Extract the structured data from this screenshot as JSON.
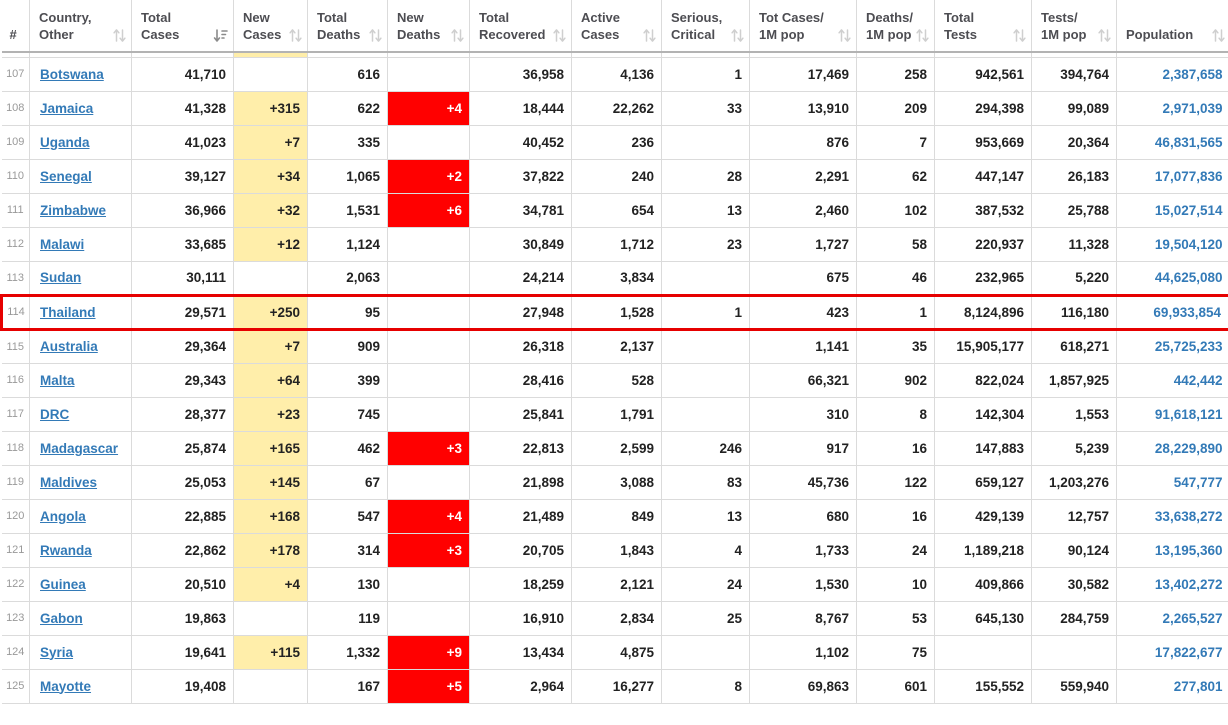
{
  "table": {
    "sort": {
      "active_column": "total_cases",
      "direction": "desc"
    },
    "partial_row_above": {
      "visible": true,
      "yellow_column": "new_cases"
    },
    "columns": [
      {
        "key": "num",
        "lines": [
          "#"
        ],
        "sortable": false
      },
      {
        "key": "country",
        "lines": [
          "Country,",
          "Other"
        ],
        "sortable": true
      },
      {
        "key": "total_cases",
        "lines": [
          "Total",
          "Cases"
        ],
        "sortable": true
      },
      {
        "key": "new_cases",
        "lines": [
          "New",
          "Cases"
        ],
        "sortable": true
      },
      {
        "key": "total_deaths",
        "lines": [
          "Total",
          "Deaths"
        ],
        "sortable": true
      },
      {
        "key": "new_deaths",
        "lines": [
          "New",
          "Deaths"
        ],
        "sortable": true
      },
      {
        "key": "total_recovered",
        "lines": [
          "Total",
          "Recovered"
        ],
        "sortable": true
      },
      {
        "key": "active_cases",
        "lines": [
          "Active",
          "Cases"
        ],
        "sortable": true
      },
      {
        "key": "serious_critical",
        "lines": [
          "Serious,",
          "Critical"
        ],
        "sortable": true
      },
      {
        "key": "cases_per_1m",
        "lines": [
          "Tot Cases/",
          "1M pop"
        ],
        "sortable": true
      },
      {
        "key": "deaths_per_1m",
        "lines": [
          "Deaths/",
          "1M pop"
        ],
        "sortable": true
      },
      {
        "key": "total_tests",
        "lines": [
          "Total",
          "Tests"
        ],
        "sortable": true
      },
      {
        "key": "tests_per_1m",
        "lines": [
          "Tests/",
          "1M pop"
        ],
        "sortable": true
      },
      {
        "key": "population",
        "lines": [
          "Population"
        ],
        "sortable": true
      }
    ],
    "rows": [
      {
        "num": "107",
        "country": "Botswana",
        "total_cases": "41,710",
        "new_cases": "",
        "total_deaths": "616",
        "new_deaths": "",
        "total_recovered": "36,958",
        "active_cases": "4,136",
        "serious_critical": "1",
        "cases_per_1m": "17,469",
        "deaths_per_1m": "258",
        "total_tests": "942,561",
        "tests_per_1m": "394,764",
        "population": "2,387,658",
        "highlighted": false
      },
      {
        "num": "108",
        "country": "Jamaica",
        "total_cases": "41,328",
        "new_cases": "+315",
        "total_deaths": "622",
        "new_deaths": "+4",
        "total_recovered": "18,444",
        "active_cases": "22,262",
        "serious_critical": "33",
        "cases_per_1m": "13,910",
        "deaths_per_1m": "209",
        "total_tests": "294,398",
        "tests_per_1m": "99,089",
        "population": "2,971,039",
        "highlighted": false
      },
      {
        "num": "109",
        "country": "Uganda",
        "total_cases": "41,023",
        "new_cases": "+7",
        "total_deaths": "335",
        "new_deaths": "",
        "total_recovered": "40,452",
        "active_cases": "236",
        "serious_critical": "",
        "cases_per_1m": "876",
        "deaths_per_1m": "7",
        "total_tests": "953,669",
        "tests_per_1m": "20,364",
        "population": "46,831,565",
        "highlighted": false
      },
      {
        "num": "110",
        "country": "Senegal",
        "total_cases": "39,127",
        "new_cases": "+34",
        "total_deaths": "1,065",
        "new_deaths": "+2",
        "total_recovered": "37,822",
        "active_cases": "240",
        "serious_critical": "28",
        "cases_per_1m": "2,291",
        "deaths_per_1m": "62",
        "total_tests": "447,147",
        "tests_per_1m": "26,183",
        "population": "17,077,836",
        "highlighted": false
      },
      {
        "num": "111",
        "country": "Zimbabwe",
        "total_cases": "36,966",
        "new_cases": "+32",
        "total_deaths": "1,531",
        "new_deaths": "+6",
        "total_recovered": "34,781",
        "active_cases": "654",
        "serious_critical": "13",
        "cases_per_1m": "2,460",
        "deaths_per_1m": "102",
        "total_tests": "387,532",
        "tests_per_1m": "25,788",
        "population": "15,027,514",
        "highlighted": false
      },
      {
        "num": "112",
        "country": "Malawi",
        "total_cases": "33,685",
        "new_cases": "+12",
        "total_deaths": "1,124",
        "new_deaths": "",
        "total_recovered": "30,849",
        "active_cases": "1,712",
        "serious_critical": "23",
        "cases_per_1m": "1,727",
        "deaths_per_1m": "58",
        "total_tests": "220,937",
        "tests_per_1m": "11,328",
        "population": "19,504,120",
        "highlighted": false
      },
      {
        "num": "113",
        "country": "Sudan",
        "total_cases": "30,111",
        "new_cases": "",
        "total_deaths": "2,063",
        "new_deaths": "",
        "total_recovered": "24,214",
        "active_cases": "3,834",
        "serious_critical": "",
        "cases_per_1m": "675",
        "deaths_per_1m": "46",
        "total_tests": "232,965",
        "tests_per_1m": "5,220",
        "population": "44,625,080",
        "highlighted": false
      },
      {
        "num": "114",
        "country": "Thailand",
        "total_cases": "29,571",
        "new_cases": "+250",
        "total_deaths": "95",
        "new_deaths": "",
        "total_recovered": "27,948",
        "active_cases": "1,528",
        "serious_critical": "1",
        "cases_per_1m": "423",
        "deaths_per_1m": "1",
        "total_tests": "8,124,896",
        "tests_per_1m": "116,180",
        "population": "69,933,854",
        "highlighted": true
      },
      {
        "num": "115",
        "country": "Australia",
        "total_cases": "29,364",
        "new_cases": "+7",
        "total_deaths": "909",
        "new_deaths": "",
        "total_recovered": "26,318",
        "active_cases": "2,137",
        "serious_critical": "",
        "cases_per_1m": "1,141",
        "deaths_per_1m": "35",
        "total_tests": "15,905,177",
        "tests_per_1m": "618,271",
        "population": "25,725,233",
        "highlighted": false
      },
      {
        "num": "116",
        "country": "Malta",
        "total_cases": "29,343",
        "new_cases": "+64",
        "total_deaths": "399",
        "new_deaths": "",
        "total_recovered": "28,416",
        "active_cases": "528",
        "serious_critical": "",
        "cases_per_1m": "66,321",
        "deaths_per_1m": "902",
        "total_tests": "822,024",
        "tests_per_1m": "1,857,925",
        "population": "442,442",
        "highlighted": false
      },
      {
        "num": "117",
        "country": "DRC",
        "total_cases": "28,377",
        "new_cases": "+23",
        "total_deaths": "745",
        "new_deaths": "",
        "total_recovered": "25,841",
        "active_cases": "1,791",
        "serious_critical": "",
        "cases_per_1m": "310",
        "deaths_per_1m": "8",
        "total_tests": "142,304",
        "tests_per_1m": "1,553",
        "population": "91,618,121",
        "highlighted": false
      },
      {
        "num": "118",
        "country": "Madagascar",
        "total_cases": "25,874",
        "new_cases": "+165",
        "total_deaths": "462",
        "new_deaths": "+3",
        "total_recovered": "22,813",
        "active_cases": "2,599",
        "serious_critical": "246",
        "cases_per_1m": "917",
        "deaths_per_1m": "16",
        "total_tests": "147,883",
        "tests_per_1m": "5,239",
        "population": "28,229,890",
        "highlighted": false
      },
      {
        "num": "119",
        "country": "Maldives",
        "total_cases": "25,053",
        "new_cases": "+145",
        "total_deaths": "67",
        "new_deaths": "",
        "total_recovered": "21,898",
        "active_cases": "3,088",
        "serious_critical": "83",
        "cases_per_1m": "45,736",
        "deaths_per_1m": "122",
        "total_tests": "659,127",
        "tests_per_1m": "1,203,276",
        "population": "547,777",
        "highlighted": false
      },
      {
        "num": "120",
        "country": "Angola",
        "total_cases": "22,885",
        "new_cases": "+168",
        "total_deaths": "547",
        "new_deaths": "+4",
        "total_recovered": "21,489",
        "active_cases": "849",
        "serious_critical": "13",
        "cases_per_1m": "680",
        "deaths_per_1m": "16",
        "total_tests": "429,139",
        "tests_per_1m": "12,757",
        "population": "33,638,272",
        "highlighted": false
      },
      {
        "num": "121",
        "country": "Rwanda",
        "total_cases": "22,862",
        "new_cases": "+178",
        "total_deaths": "314",
        "new_deaths": "+3",
        "total_recovered": "20,705",
        "active_cases": "1,843",
        "serious_critical": "4",
        "cases_per_1m": "1,733",
        "deaths_per_1m": "24",
        "total_tests": "1,189,218",
        "tests_per_1m": "90,124",
        "population": "13,195,360",
        "highlighted": false
      },
      {
        "num": "122",
        "country": "Guinea",
        "total_cases": "20,510",
        "new_cases": "+4",
        "total_deaths": "130",
        "new_deaths": "",
        "total_recovered": "18,259",
        "active_cases": "2,121",
        "serious_critical": "24",
        "cases_per_1m": "1,530",
        "deaths_per_1m": "10",
        "total_tests": "409,866",
        "tests_per_1m": "30,582",
        "population": "13,402,272",
        "highlighted": false
      },
      {
        "num": "123",
        "country": "Gabon",
        "total_cases": "19,863",
        "new_cases": "",
        "total_deaths": "119",
        "new_deaths": "",
        "total_recovered": "16,910",
        "active_cases": "2,834",
        "serious_critical": "25",
        "cases_per_1m": "8,767",
        "deaths_per_1m": "53",
        "total_tests": "645,130",
        "tests_per_1m": "284,759",
        "population": "2,265,527",
        "highlighted": false
      },
      {
        "num": "124",
        "country": "Syria",
        "total_cases": "19,641",
        "new_cases": "+115",
        "total_deaths": "1,332",
        "new_deaths": "+9",
        "total_recovered": "13,434",
        "active_cases": "4,875",
        "serious_critical": "",
        "cases_per_1m": "1,102",
        "deaths_per_1m": "75",
        "total_tests": "",
        "tests_per_1m": "",
        "population": "17,822,677",
        "highlighted": false
      },
      {
        "num": "125",
        "country": "Mayotte",
        "total_cases": "19,408",
        "new_cases": "",
        "total_deaths": "167",
        "new_deaths": "+5",
        "total_recovered": "2,964",
        "active_cases": "16,277",
        "serious_critical": "8",
        "cases_per_1m": "69,863",
        "deaths_per_1m": "601",
        "total_tests": "155,552",
        "tests_per_1m": "559,940",
        "population": "277,801",
        "highlighted": false
      }
    ]
  },
  "icons": {
    "sort_inactive": "sort-updown-icon",
    "sort_active": "sort-descending-icon"
  },
  "colors": {
    "new_cases_bg": "#FFEEAA",
    "new_deaths_bg": "#FF0000",
    "new_deaths_text": "#FFFFFF",
    "link_color": "#337AB7",
    "row_highlight_border": "#E60000",
    "row_number_color": "#999999",
    "header_text_color": "#4D4D52",
    "cell_text_color": "#222222",
    "grid_line_color": "#DBDBDB"
  }
}
